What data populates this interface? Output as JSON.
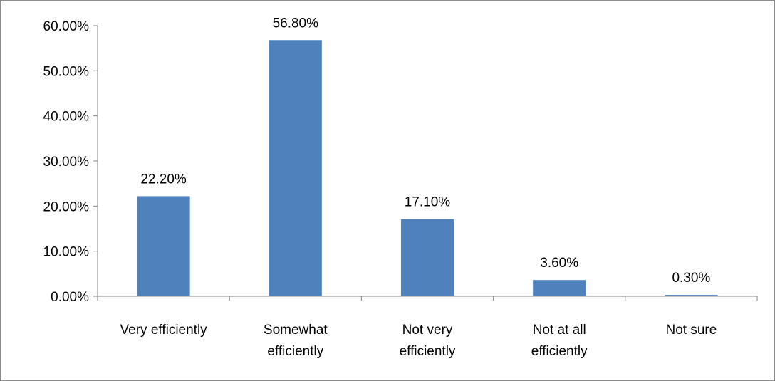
{
  "chart_data": {
    "type": "bar",
    "title": "",
    "xlabel": "",
    "ylabel": "",
    "categories": [
      [
        "Very efficiently"
      ],
      [
        "Somewhat",
        "efficiently"
      ],
      [
        "Not very",
        "efficiently"
      ],
      [
        "Not at all",
        "efficiently"
      ],
      [
        "Not sure"
      ]
    ],
    "values": [
      22.2,
      56.8,
      17.1,
      3.6,
      0.3
    ],
    "data_labels": [
      "22.20%",
      "56.80%",
      "17.10%",
      "3.60%",
      "0.30%"
    ],
    "ylim": [
      0,
      60
    ],
    "yticks": [
      0,
      10,
      20,
      30,
      40,
      50,
      60
    ],
    "ytick_labels": [
      "0.00%",
      "10.00%",
      "20.00%",
      "30.00%",
      "40.00%",
      "50.00%",
      "60.00%"
    ],
    "grid": false,
    "legend": "none",
    "bar_color": "#4F81BD",
    "axis_color": "#868686"
  }
}
